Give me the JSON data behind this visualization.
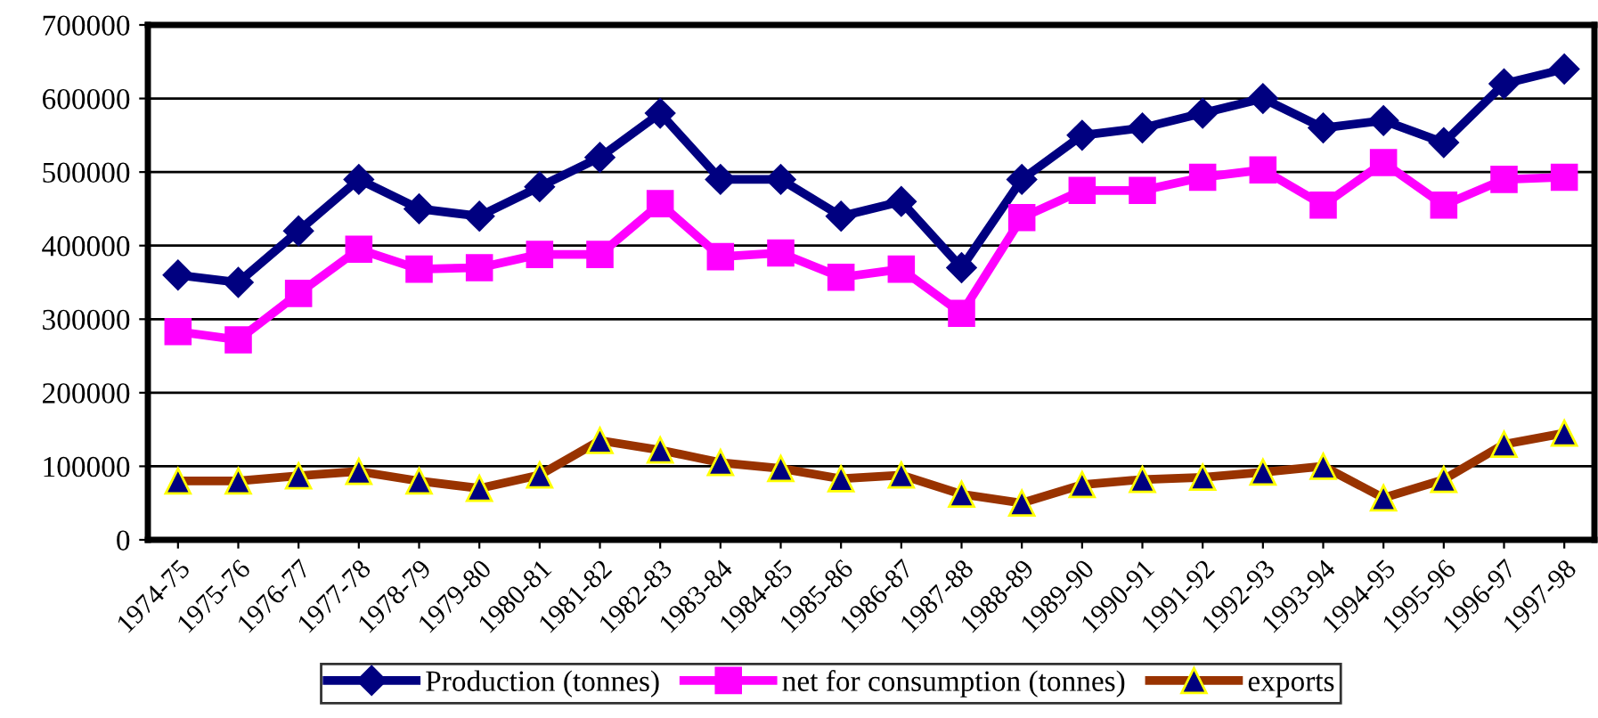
{
  "chart_data": {
    "type": "line",
    "categories": [
      "1974-75",
      "1975-76",
      "1976-77",
      "1977-78",
      "1978-79",
      "1979-80",
      "1980-81",
      "1981-82",
      "1982-83",
      "1983-84",
      "1984-85",
      "1985-86",
      "1986-87",
      "1987-88",
      "1988-89",
      "1989-90",
      "1990-91",
      "1991-92",
      "1992-93",
      "1993-94",
      "1994-95",
      "1995-96",
      "1996-97",
      "1997-98"
    ],
    "series": [
      {
        "name": "Production (tonnes)",
        "color": "#000080",
        "marker": "diamond",
        "values": [
          360000,
          350000,
          420000,
          490000,
          450000,
          440000,
          480000,
          520000,
          580000,
          490000,
          490000,
          440000,
          460000,
          370000,
          490000,
          550000,
          560000,
          580000,
          600000,
          560000,
          570000,
          540000,
          620000,
          640000
        ]
      },
      {
        "name": "net for consumption (tonnes)",
        "color": "#ff00ff",
        "marker": "square",
        "values": [
          283000,
          272000,
          335000,
          395000,
          368000,
          370000,
          388000,
          388000,
          457000,
          385000,
          390000,
          357000,
          368000,
          308000,
          438000,
          475000,
          475000,
          493000,
          503000,
          455000,
          513000,
          455000,
          490000,
          493000
        ]
      },
      {
        "name": "exports",
        "color": "#993300",
        "marker": "triangle",
        "values": [
          80000,
          80000,
          87000,
          93000,
          80000,
          70000,
          88000,
          135000,
          122000,
          105000,
          97000,
          83000,
          88000,
          62000,
          50000,
          75000,
          82000,
          85000,
          92000,
          100000,
          57000,
          82000,
          130000,
          145000
        ]
      }
    ],
    "ylim": [
      0,
      700000
    ],
    "yticks": [
      0,
      100000,
      200000,
      300000,
      400000,
      500000,
      600000,
      700000
    ],
    "grid": "y",
    "legend": "bottom",
    "line_style": "solid"
  }
}
